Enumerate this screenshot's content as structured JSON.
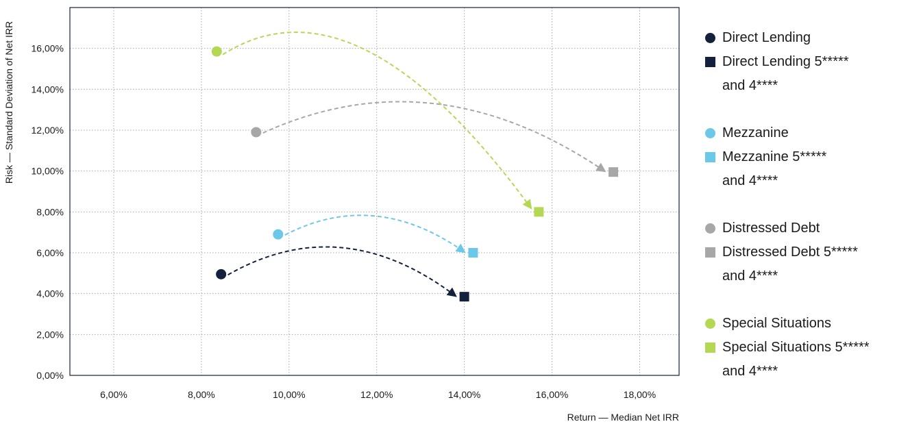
{
  "chart_data": {
    "type": "scatter",
    "xlabel": "Return — Median Net IRR",
    "ylabel": "Risk — Standard Deviation of Net IRR",
    "xlim": [
      5.0,
      18.9
    ],
    "ylim": [
      0,
      18
    ],
    "x_ticks": [
      6,
      8,
      10,
      12,
      14,
      16,
      18
    ],
    "x_tick_labels": [
      "6,00%",
      "8,00%",
      "10,00%",
      "12,00%",
      "14,00%",
      "16,00%",
      "18,00%"
    ],
    "y_ticks": [
      0,
      2,
      4,
      6,
      8,
      10,
      12,
      14,
      16
    ],
    "y_tick_labels": [
      "0,00%",
      "2,00%",
      "4,00%",
      "6,00%",
      "8,00%",
      "10,00%",
      "12,00%",
      "14,00%",
      "16,00%"
    ],
    "grid": true,
    "legend_position": "right",
    "series": [
      {
        "name": "Direct Lending",
        "marker": "circle",
        "color": "#14213d",
        "x": 8.45,
        "y": 4.95
      },
      {
        "name": "Direct Lending 5***** and 4****",
        "marker": "square",
        "color": "#14213d",
        "x": 14.0,
        "y": 3.85
      },
      {
        "name": "Mezzanine",
        "marker": "circle",
        "color": "#6cc8e8",
        "x": 9.75,
        "y": 6.9
      },
      {
        "name": "Mezzanine 5***** and 4****",
        "marker": "square",
        "color": "#6cc8e8",
        "x": 14.2,
        "y": 6.0
      },
      {
        "name": "Distressed Debt",
        "marker": "circle",
        "color": "#a7a7a7",
        "x": 9.25,
        "y": 11.9
      },
      {
        "name": "Distressed Debt 5***** and 4****",
        "marker": "square",
        "color": "#a7a7a7",
        "x": 17.4,
        "y": 9.95
      },
      {
        "name": "Special Situations",
        "marker": "circle",
        "color": "#b5d854",
        "x": 8.35,
        "y": 15.85
      },
      {
        "name": "Special Situations 5***** and 4****",
        "marker": "square",
        "color": "#b5d854",
        "x": 15.7,
        "y": 8.0
      }
    ],
    "arrows": [
      {
        "from": 0,
        "to": 1,
        "color": "#14213d",
        "peak_y": 6.25
      },
      {
        "from": 2,
        "to": 3,
        "color": "#6cc8e8",
        "peak_y": 7.8
      },
      {
        "from": 4,
        "to": 5,
        "color": "#a7a7a7",
        "peak_y": 13.3
      },
      {
        "from": 6,
        "to": 7,
        "color": "#b5d854",
        "peak_y": 15.9
      }
    ]
  },
  "legend": [
    {
      "label": "Direct Lending",
      "marker": "circle",
      "color": "#14213d"
    },
    {
      "label": "Direct Lending 5*****\nand 4****",
      "marker": "square",
      "color": "#14213d"
    },
    {
      "label": "Mezzanine",
      "marker": "circle",
      "color": "#6cc8e8"
    },
    {
      "label": "Mezzanine 5*****\nand 4****",
      "marker": "square",
      "color": "#6cc8e8"
    },
    {
      "label": "Distressed Debt",
      "marker": "circle",
      "color": "#a7a7a7"
    },
    {
      "label": "Distressed Debt 5*****\nand 4****",
      "marker": "square",
      "color": "#a7a7a7"
    },
    {
      "label": "Special Situations",
      "marker": "circle",
      "color": "#b5d854"
    },
    {
      "label": "Special Situations 5*****\nand 4****",
      "marker": "square",
      "color": "#b5d854"
    }
  ],
  "colors": {
    "frame": "#14213d",
    "grid": "#a8a8a8"
  }
}
